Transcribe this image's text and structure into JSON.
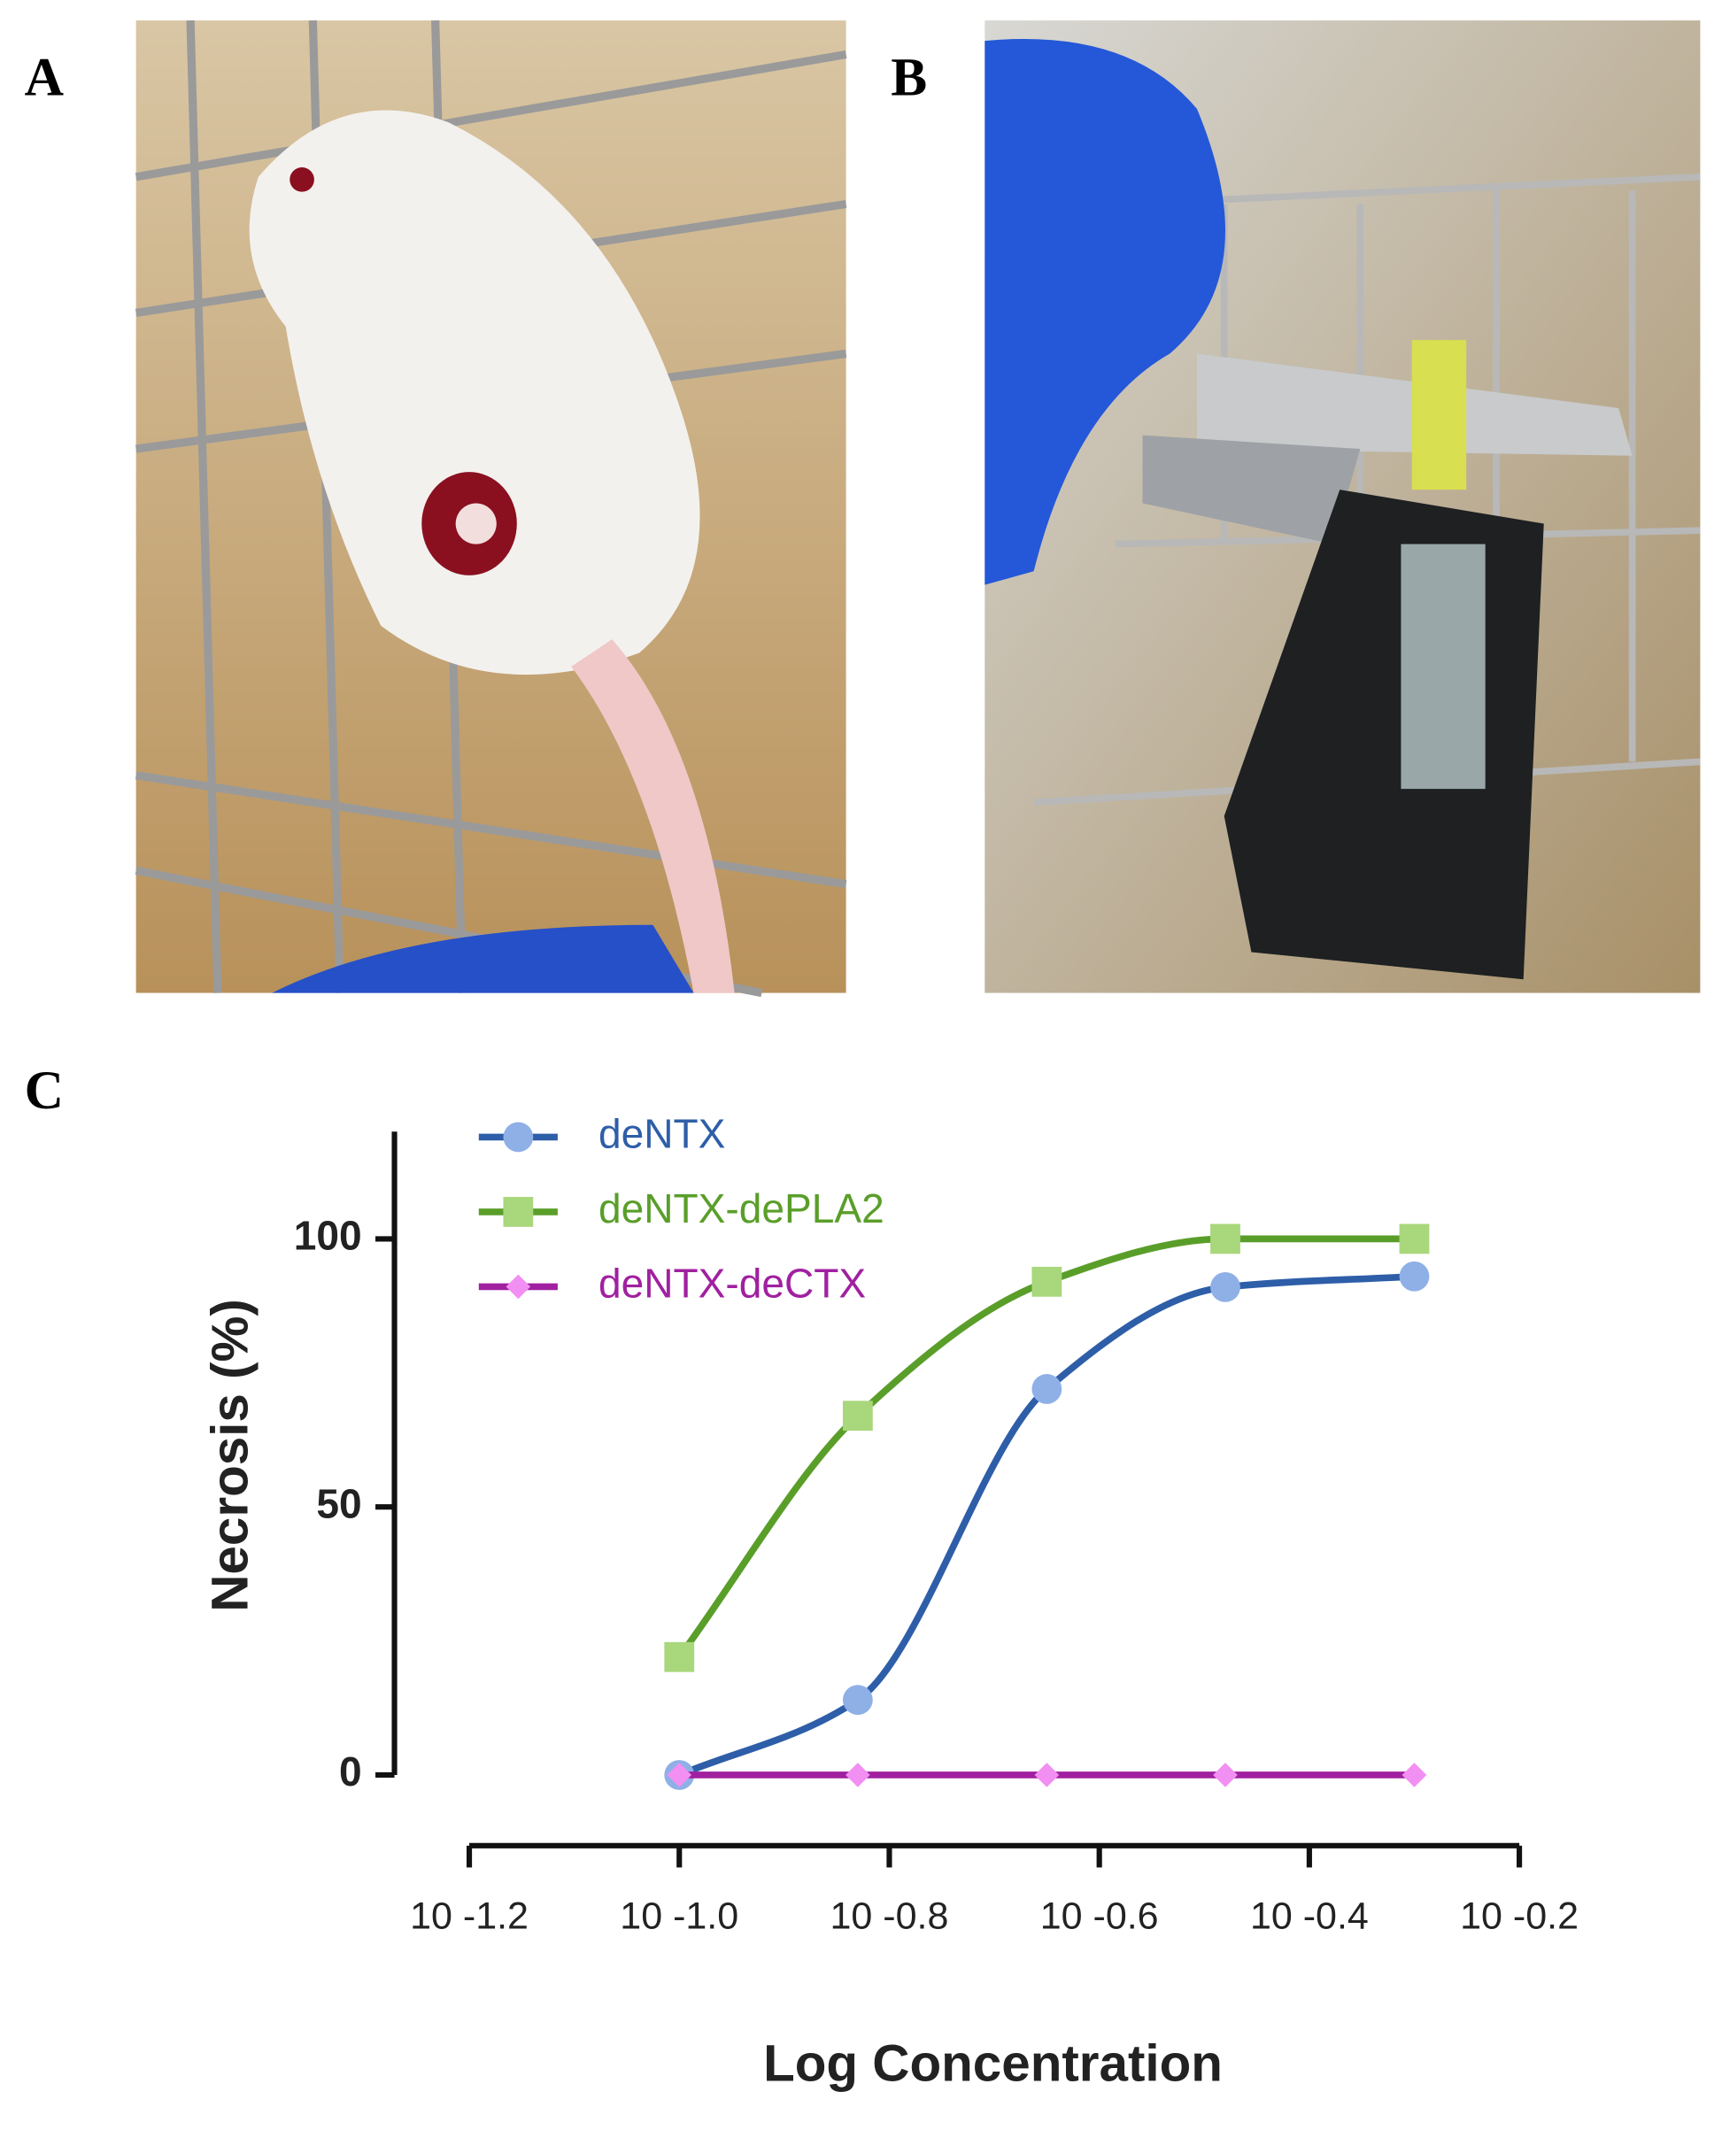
{
  "figure": {
    "panel_labels": [
      "A",
      "B",
      "C"
    ]
  },
  "chart_data": {
    "type": "line",
    "xlabel": "Log Concentration",
    "ylabel": "Necrosis (%)",
    "xlim": [
      -1.2,
      -0.2
    ],
    "xticks": [
      {
        "value": -1.2,
        "label": "10 -1.2"
      },
      {
        "value": -1.0,
        "label": "10 -1.0"
      },
      {
        "value": -0.8,
        "label": "10 -0.8"
      },
      {
        "value": -0.6,
        "label": "10 -0.6"
      },
      {
        "value": -0.4,
        "label": "10 -0.4"
      },
      {
        "value": -0.2,
        "label": "10 -0.2"
      }
    ],
    "ylim": [
      0,
      120
    ],
    "yticks": [
      0,
      50,
      100
    ],
    "legend": "upper left",
    "curve": "smooth",
    "series": [
      {
        "name": "deNTX",
        "color": "#2e5ea8",
        "marker": "circle",
        "marker_color": "#8fb0e6",
        "x": [
          -1.0,
          -0.83,
          -0.65,
          -0.48,
          -0.3
        ],
        "values": [
          0,
          14,
          72,
          91,
          93
        ]
      },
      {
        "name": "deNTX-dePLA2",
        "color": "#5a9e2a",
        "marker": "square",
        "marker_color": "#a9d77c",
        "x": [
          -1.0,
          -0.83,
          -0.65,
          -0.48,
          -0.3
        ],
        "values": [
          22,
          67,
          92,
          100,
          100
        ]
      },
      {
        "name": "deNTX-deCTX",
        "color": "#a020a0",
        "marker": "diamond",
        "marker_color": "#f28ff2",
        "x": [
          -1.0,
          -0.83,
          -0.65,
          -0.48,
          -0.3
        ],
        "values": [
          0,
          0,
          0,
          0,
          0
        ]
      }
    ]
  }
}
